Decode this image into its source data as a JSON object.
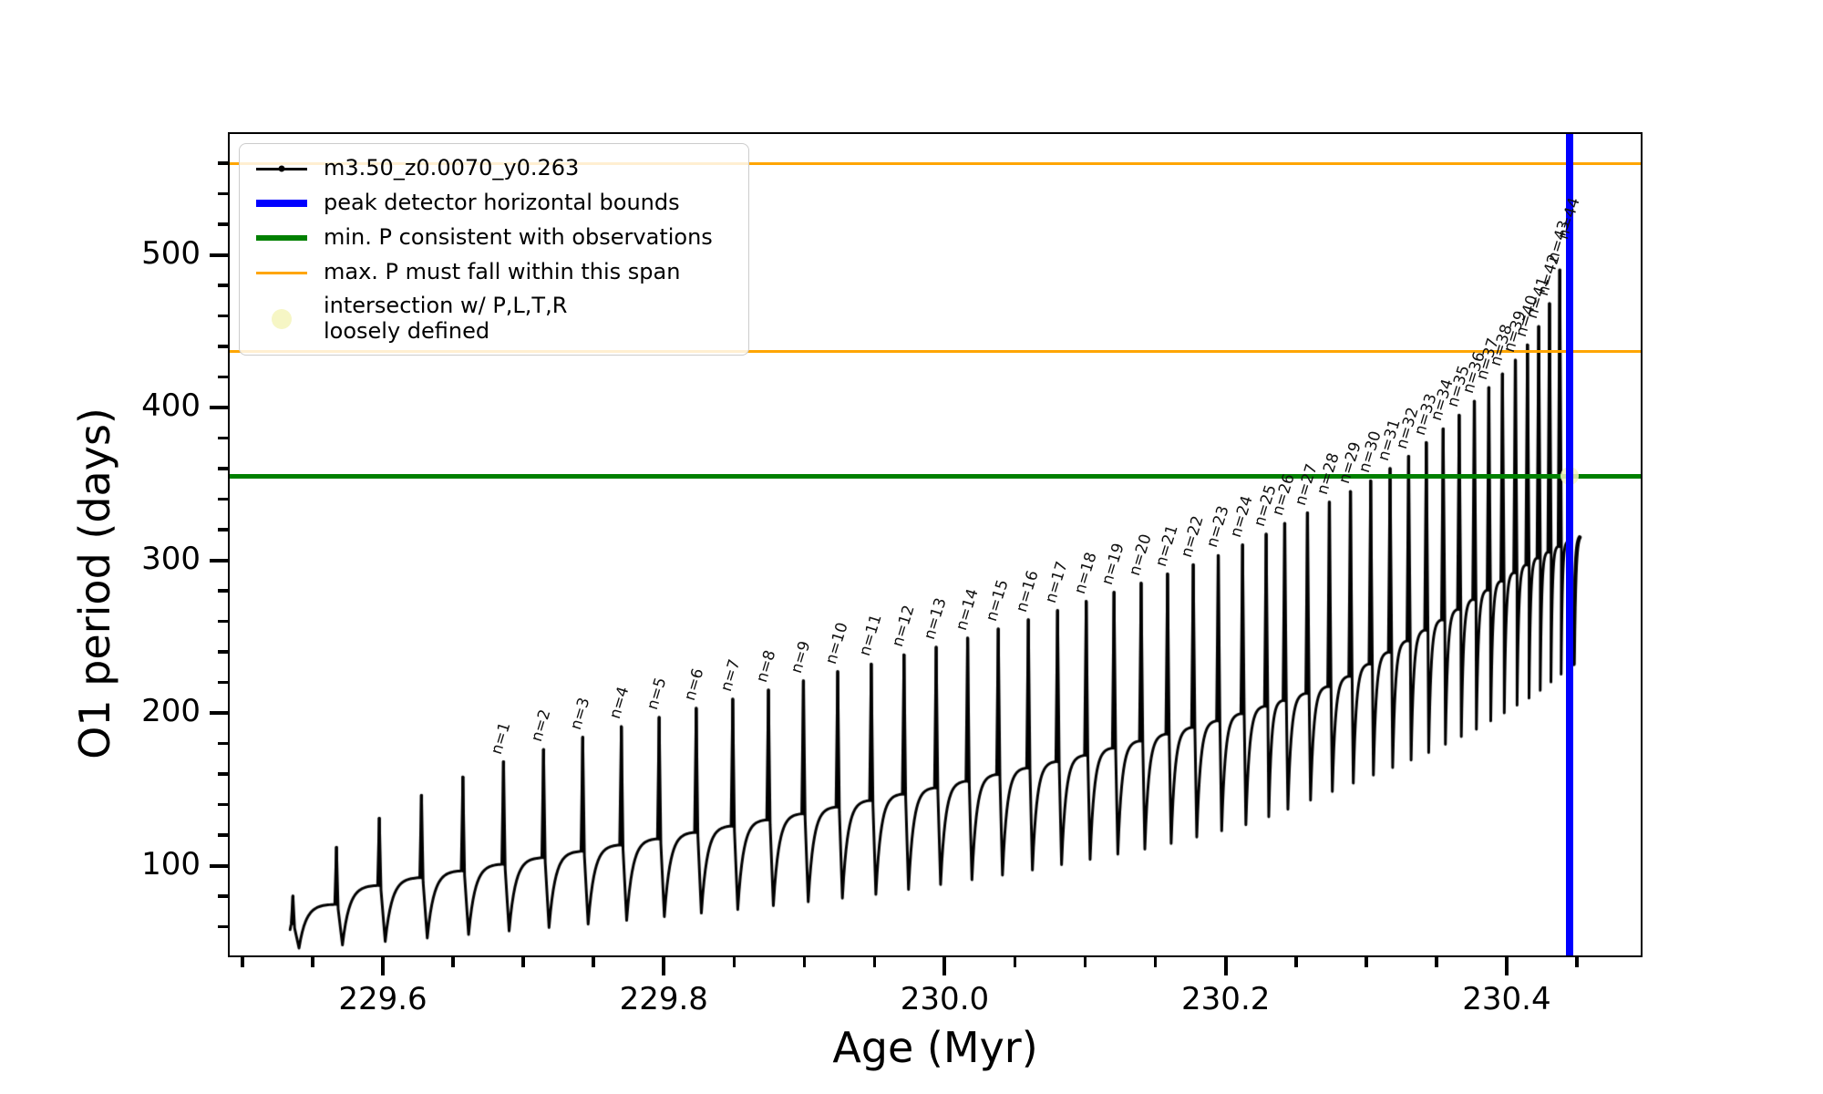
{
  "chart_data": {
    "type": "line",
    "title": "",
    "xlabel": "Age (Myr)",
    "ylabel": "O1 period (days)",
    "xlim": [
      229.4897,
      230.4967
    ],
    "ylim": [
      40.0,
      580.3
    ],
    "grid": false,
    "legend_position": "upper-left",
    "x_ticks": {
      "major": [
        {
          "v": 229.6,
          "label": "229.6"
        },
        {
          "v": 229.8,
          "label": "229.8"
        },
        {
          "v": 230.0,
          "label": "230.0"
        },
        {
          "v": 230.2,
          "label": "230.2"
        },
        {
          "v": 230.4,
          "label": "230.4"
        }
      ],
      "minor": [
        229.5,
        229.55,
        229.65,
        229.7,
        229.75,
        229.85,
        229.9,
        229.95,
        230.05,
        230.1,
        230.15,
        230.25,
        230.3,
        230.35,
        230.45
      ]
    },
    "y_ticks": {
      "major": [
        {
          "v": 100,
          "label": "100"
        },
        {
          "v": 200,
          "label": "200"
        },
        {
          "v": 300,
          "label": "300"
        },
        {
          "v": 400,
          "label": "400"
        },
        {
          "v": 500,
          "label": "500"
        }
      ],
      "minor": [
        60,
        80,
        120,
        140,
        160,
        180,
        220,
        240,
        260,
        280,
        320,
        340,
        360,
        380,
        420,
        440,
        460,
        480,
        520,
        540,
        560
      ]
    },
    "series": {
      "name": "m3.50_z0.0070_y0.263",
      "color": "#000000"
    },
    "hlines": [
      {
        "name": "max-P-span-upper",
        "y": 560,
        "color": "#FFA500",
        "width": 3
      },
      {
        "name": "max-P-span-lower",
        "y": 437,
        "color": "#FFA500",
        "width": 3
      },
      {
        "name": "min-P-consistent",
        "y": 355,
        "color": "#008000",
        "width": 4.5
      }
    ],
    "vlines": [
      {
        "name": "peak-detector-bound",
        "x": 230.4447,
        "color": "#0000FF",
        "width": 8
      }
    ],
    "intersection_marker": {
      "x": 230.4447,
      "y": 355,
      "color": "#F5F5BE",
      "alpha": 0.85,
      "radius": 10
    },
    "spikes": [
      {
        "label": "",
        "age": 229.536,
        "peak": 80
      },
      {
        "label": "",
        "age": 229.567,
        "peak": 112
      },
      {
        "label": "",
        "age": 229.5975,
        "peak": 131
      },
      {
        "label": "",
        "age": 229.6275,
        "peak": 146
      },
      {
        "label": "",
        "age": 229.657,
        "peak": 158
      },
      {
        "label": "n=1",
        "age": 229.6859,
        "peak": 168
      },
      {
        "label": "n=2",
        "age": 229.7144,
        "peak": 176
      },
      {
        "label": "n=3",
        "age": 229.7423,
        "peak": 184
      },
      {
        "label": "n=4",
        "age": 229.7698,
        "peak": 191
      },
      {
        "label": "n=5",
        "age": 229.7967,
        "peak": 197
      },
      {
        "label": "n=6",
        "age": 229.8231,
        "peak": 203
      },
      {
        "label": "n=7",
        "age": 229.8491,
        "peak": 209
      },
      {
        "label": "n=8",
        "age": 229.8745,
        "peak": 215
      },
      {
        "label": "n=9",
        "age": 229.8994,
        "peak": 221
      },
      {
        "label": "n=10",
        "age": 229.9238,
        "peak": 227
      },
      {
        "label": "n=11",
        "age": 229.9477,
        "peak": 232
      },
      {
        "label": "n=12",
        "age": 229.971,
        "peak": 238
      },
      {
        "label": "n=13",
        "age": 229.9939,
        "peak": 243
      },
      {
        "label": "n=14",
        "age": 230.0163,
        "peak": 249
      },
      {
        "label": "n=15",
        "age": 230.0381,
        "peak": 255
      },
      {
        "label": "n=16",
        "age": 230.0595,
        "peak": 261
      },
      {
        "label": "n=17",
        "age": 230.0803,
        "peak": 267
      },
      {
        "label": "n=18",
        "age": 230.1007,
        "peak": 273
      },
      {
        "label": "n=19",
        "age": 230.1205,
        "peak": 279
      },
      {
        "label": "n=20",
        "age": 230.1398,
        "peak": 285
      },
      {
        "label": "n=21",
        "age": 230.1586,
        "peak": 291
      },
      {
        "label": "n=22",
        "age": 230.1769,
        "peak": 297
      },
      {
        "label": "n=23",
        "age": 230.1947,
        "peak": 303
      },
      {
        "label": "n=24",
        "age": 230.212,
        "peak": 310
      },
      {
        "label": "n=25",
        "age": 230.2288,
        "peak": 317
      },
      {
        "label": "n=26",
        "age": 230.242,
        "peak": 324
      },
      {
        "label": "n=27",
        "age": 230.2582,
        "peak": 331
      },
      {
        "label": "n=28",
        "age": 230.2738,
        "peak": 338
      },
      {
        "label": "n=29",
        "age": 230.2888,
        "peak": 345
      },
      {
        "label": "n=30",
        "age": 230.3032,
        "peak": 352
      },
      {
        "label": "n=31",
        "age": 230.317,
        "peak": 360
      },
      {
        "label": "n=32",
        "age": 230.3302,
        "peak": 368
      },
      {
        "label": "n=33",
        "age": 230.3428,
        "peak": 377
      },
      {
        "label": "n=34",
        "age": 230.3548,
        "peak": 386
      },
      {
        "label": "n=35",
        "age": 230.3662,
        "peak": 395
      },
      {
        "label": "n=36",
        "age": 230.377,
        "peak": 404
      },
      {
        "label": "n=37",
        "age": 230.3873,
        "peak": 413
      },
      {
        "label": "n=38",
        "age": 230.397,
        "peak": 422
      },
      {
        "label": "n=39",
        "age": 230.4062,
        "peak": 431
      },
      {
        "label": "n=40",
        "age": 230.4148,
        "peak": 441
      },
      {
        "label": "n=41",
        "age": 230.4228,
        "peak": 453
      },
      {
        "label": "n=42",
        "age": 230.4305,
        "peak": 468
      },
      {
        "label": "n=43",
        "age": 230.4378,
        "peak": 490
      },
      {
        "label": "n=44",
        "age": 230.4447,
        "peak": 505
      }
    ],
    "dip_envelope": [
      [
        229.545,
        46
      ],
      [
        229.65,
        54
      ],
      [
        229.75,
        62
      ],
      [
        229.85,
        71
      ],
      [
        229.95,
        81
      ],
      [
        230.05,
        95
      ],
      [
        230.15,
        112
      ],
      [
        230.22,
        128
      ],
      [
        230.28,
        150
      ],
      [
        230.34,
        172
      ],
      [
        230.38,
        190
      ],
      [
        230.42,
        212
      ],
      [
        230.448,
        232
      ]
    ],
    "plateau_envelope": [
      [
        229.536,
        62
      ],
      [
        229.6,
        88
      ],
      [
        229.7,
        103
      ],
      [
        229.8,
        118
      ],
      [
        229.9,
        134
      ],
      [
        230.0,
        152
      ],
      [
        230.1,
        172
      ],
      [
        230.2,
        196
      ],
      [
        230.28,
        219
      ],
      [
        230.355,
        261
      ],
      [
        230.42,
        300
      ],
      [
        230.44,
        310
      ],
      [
        230.452,
        315
      ]
    ],
    "data_end": {
      "age": 230.452,
      "value": 315
    }
  },
  "legend": {
    "items": [
      {
        "label": "m3.50_z0.0070_y0.263",
        "swatch": "line-dot",
        "color": "#000000",
        "thickness": 3
      },
      {
        "label": "peak detector horizontal bounds",
        "swatch": "line",
        "color": "#0000FF",
        "thickness": 8
      },
      {
        "label": "min. P consistent with observations",
        "swatch": "line",
        "color": "#008000",
        "thickness": 6
      },
      {
        "label": "max. P must fall within this span",
        "swatch": "line",
        "color": "#FFA500",
        "thickness": 3
      },
      {
        "label": "intersection w/ P,L,T,R\nloosely defined",
        "swatch": "circle",
        "color": "#F5F5C2",
        "thickness": 22
      }
    ]
  }
}
